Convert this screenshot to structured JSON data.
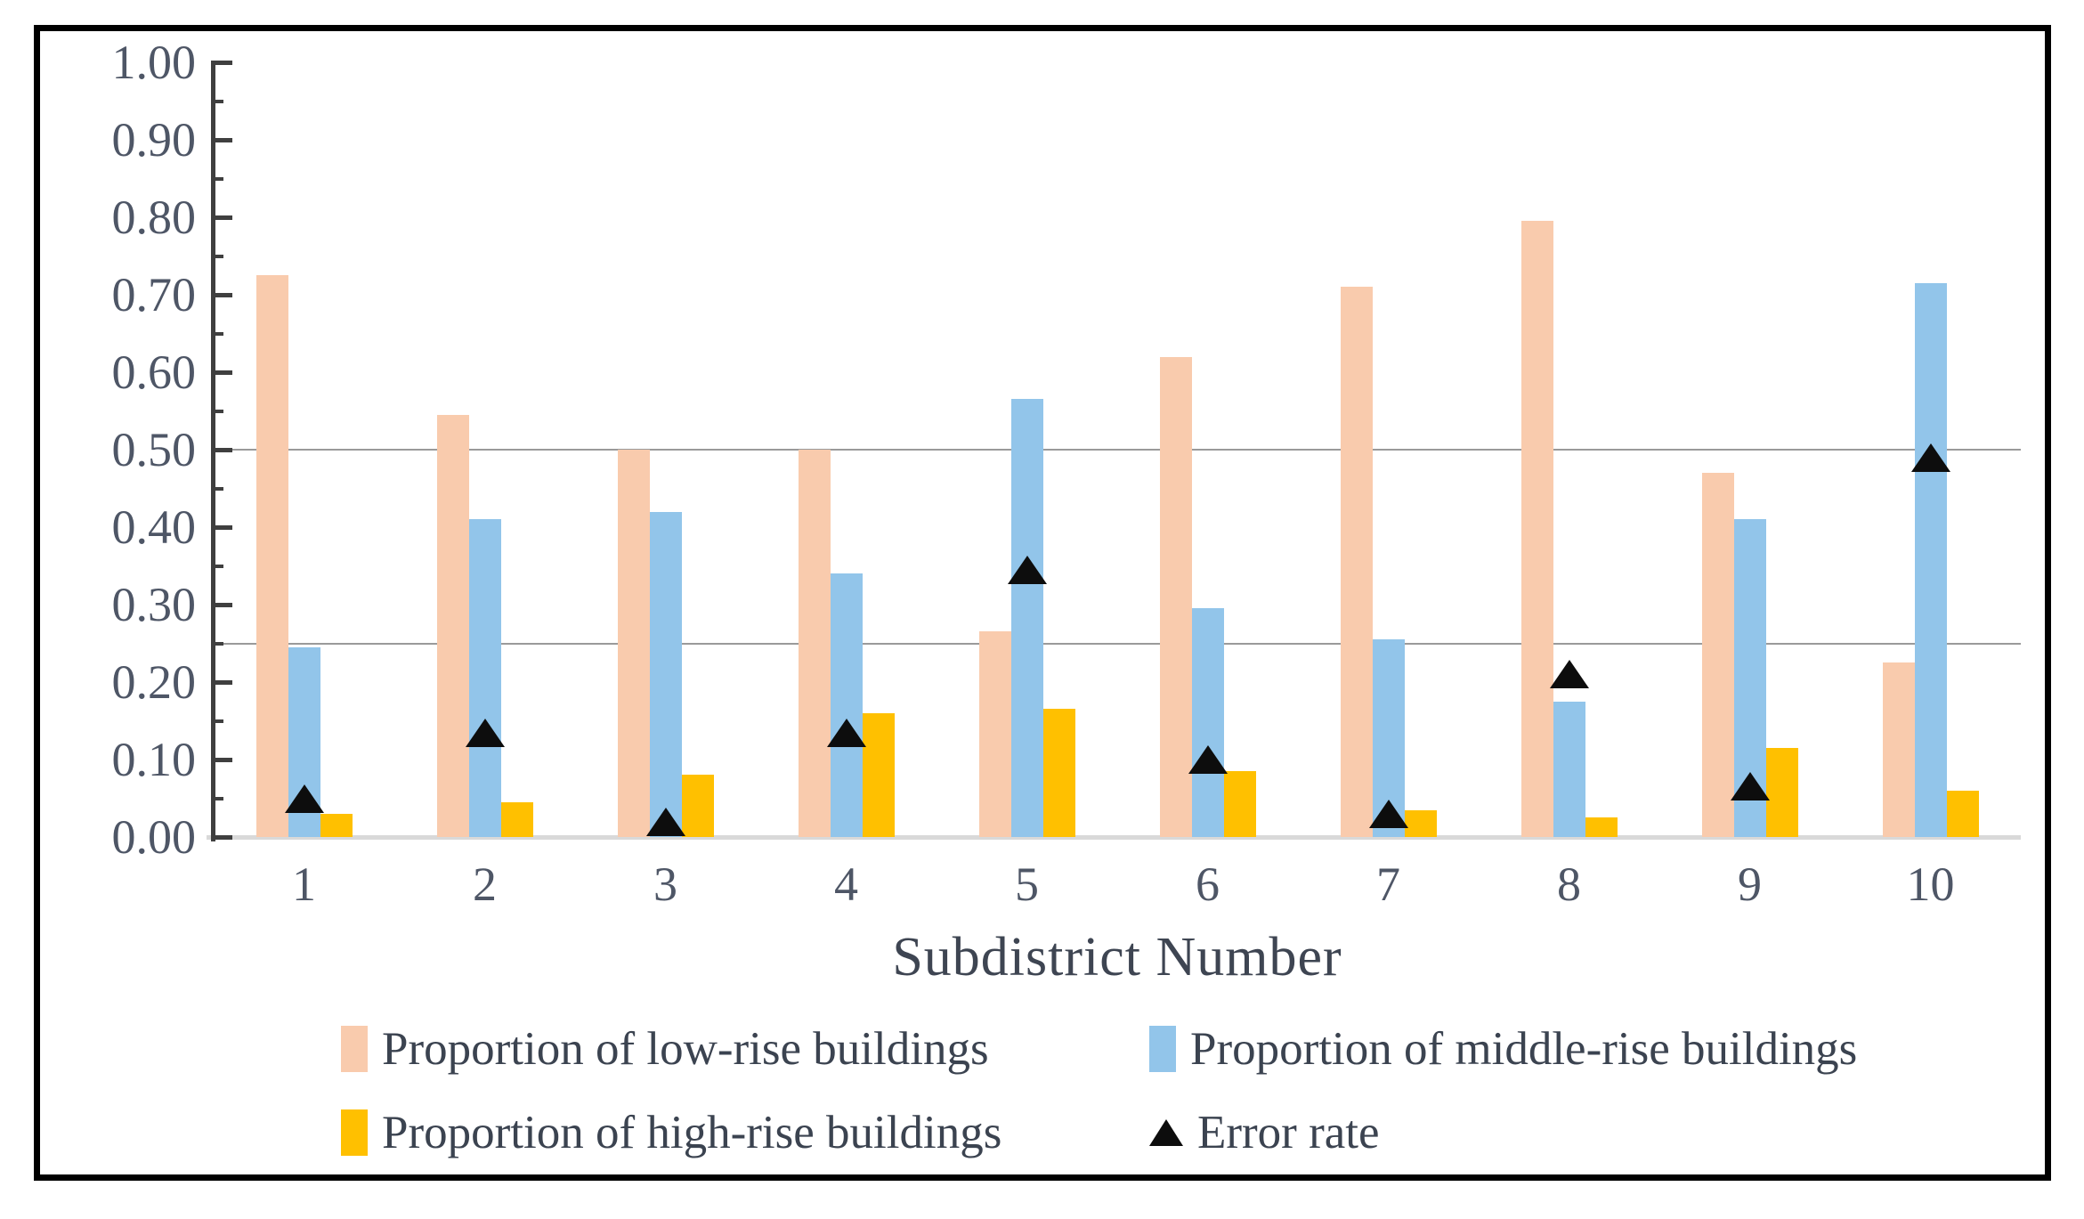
{
  "title": {
    "text": "Subdistrict Number"
  },
  "y_axis": {
    "min": 0,
    "max": 1,
    "major_step": 0.1,
    "minor_step": 0.05,
    "tick_labels": [
      "1.00",
      "0.90",
      "0.80",
      "0.70",
      "0.60",
      "0.50",
      "0.40",
      "0.30",
      "0.20",
      "0.10",
      "0.00"
    ],
    "gridlines_at": [
      0.5,
      0.25
    ],
    "gridline_color": "#9a9a9a",
    "axis_color": "#3f3f3f",
    "label_color": "#4e5666"
  },
  "x_axis": {
    "categories": [
      "1",
      "2",
      "3",
      "4",
      "5",
      "6",
      "7",
      "8",
      "9",
      "10"
    ]
  },
  "legend": {
    "items": [
      {
        "label": "Proportion of low-rise buildings",
        "marker": "square",
        "color": "#F9CBAD"
      },
      {
        "label": "Proportion of middle-rise buildings",
        "marker": "square",
        "color": "#92C5EA"
      },
      {
        "label": "Proportion of high-rise buildings",
        "marker": "square",
        "color": "#FFC000"
      },
      {
        "label": "Error rate",
        "marker": "triangle",
        "color": "#0d0d0d"
      }
    ]
  },
  "chart_data": {
    "type": "bar",
    "title": "",
    "xlabel": "Subdistrict Number",
    "ylabel": "",
    "ylim": [
      0,
      1
    ],
    "grid": "horizontal lines at 0.25 and 0.50 only",
    "legend_position": "bottom",
    "categories": [
      "1",
      "2",
      "3",
      "4",
      "5",
      "6",
      "7",
      "8",
      "9",
      "10"
    ],
    "series": [
      {
        "name": "Proportion of low-rise buildings",
        "type": "bar",
        "color": "#F9CBAD",
        "values": [
          0.725,
          0.545,
          0.5,
          0.5,
          0.265,
          0.62,
          0.71,
          0.795,
          0.47,
          0.225
        ]
      },
      {
        "name": "Proportion of middle-rise buildings",
        "type": "bar",
        "color": "#92C5EA",
        "values": [
          0.245,
          0.41,
          0.42,
          0.34,
          0.565,
          0.295,
          0.255,
          0.175,
          0.41,
          0.715
        ]
      },
      {
        "name": "Proportion of high-rise buildings",
        "type": "bar",
        "color": "#FFC000",
        "values": [
          0.03,
          0.045,
          0.08,
          0.16,
          0.165,
          0.085,
          0.035,
          0.025,
          0.115,
          0.06
        ]
      },
      {
        "name": "Error rate",
        "type": "scatter",
        "marker": "triangle-up",
        "color": "#0d0d0d",
        "values": [
          0.05,
          0.135,
          0.02,
          0.135,
          0.345,
          0.1,
          0.03,
          0.21,
          0.065,
          0.49
        ]
      }
    ]
  }
}
